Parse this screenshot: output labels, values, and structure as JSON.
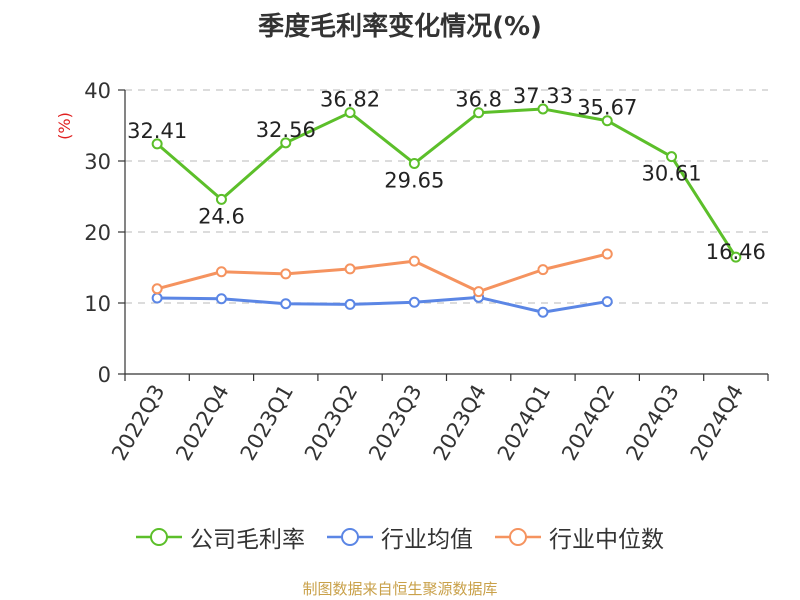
{
  "title": "季度毛利率变化情况(%)",
  "source": "制图数据来自恒生聚源数据库",
  "chart_data": {
    "type": "line",
    "title": "季度毛利率变化情况(%)",
    "ylabel": "(%)",
    "ylim": [
      0,
      40
    ],
    "yticks": [
      0,
      10,
      20,
      30,
      40
    ],
    "categories": [
      "2022Q3",
      "2022Q4",
      "2023Q1",
      "2023Q2",
      "2023Q3",
      "2023Q4",
      "2024Q1",
      "2024Q2",
      "2024Q3",
      "2024Q4"
    ],
    "grid": true,
    "legend_position": "bottom",
    "series": [
      {
        "name": "公司毛利率",
        "color": "#5cbf2a",
        "values": [
          32.41,
          24.6,
          32.56,
          36.82,
          29.65,
          36.8,
          37.33,
          35.67,
          30.61,
          16.46
        ],
        "labels": [
          "32.41",
          "24.6",
          "32.56",
          "36.82",
          "29.65",
          "36.8",
          "37.33",
          "35.67",
          "30.61",
          "16.46"
        ]
      },
      {
        "name": "行业均值",
        "color": "#5b86e5",
        "values": [
          10.7,
          10.6,
          9.9,
          9.8,
          10.1,
          10.8,
          8.7,
          10.2,
          null,
          null
        ]
      },
      {
        "name": "行业中位数",
        "color": "#f5935f",
        "values": [
          12.0,
          14.4,
          14.1,
          14.8,
          15.9,
          11.6,
          14.7,
          16.9,
          null,
          null
        ]
      }
    ]
  }
}
